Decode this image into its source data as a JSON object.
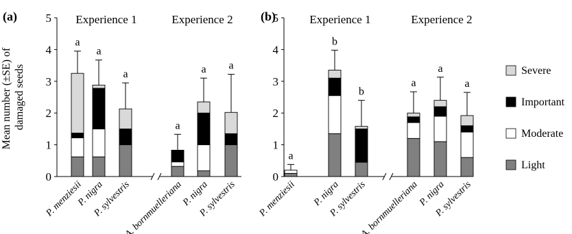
{
  "figure": {
    "ylabel_line1": "Mean number (±SE) of",
    "ylabel_line2": "damaged seeds",
    "legend": [
      {
        "label": "Severe",
        "color": "#d9d9d9"
      },
      {
        "label": "Important",
        "color": "#000000"
      },
      {
        "label": "Moderate",
        "color": "#ffffff"
      },
      {
        "label": "Light",
        "color": "#808080"
      }
    ]
  },
  "chart_data": [
    {
      "type": "bar",
      "stacked": true,
      "panel_label": "(a)",
      "ylim": [
        0,
        5
      ],
      "yticks": [
        "0",
        "1",
        "2",
        "3",
        "4",
        "5"
      ],
      "ylabel": "Mean number (±SE) of damaged seeds",
      "groups": [
        {
          "name": "Experience 1",
          "categories": [
            "P. menziesii",
            "P. nigra",
            "P. sylvestris"
          ]
        },
        {
          "name": "Experience 2",
          "categories": [
            "A. bornmuelleriana",
            "P. nigra",
            "P. sylvestris"
          ]
        }
      ],
      "series": [
        {
          "name": "Light",
          "values": [
            0.62,
            0.62,
            1.0,
            0.32,
            0.18,
            1.0
          ]
        },
        {
          "name": "Moderate",
          "values": [
            0.6,
            0.88,
            0.0,
            0.14,
            0.82,
            0.0
          ]
        },
        {
          "name": "Important",
          "values": [
            0.15,
            1.28,
            0.5,
            0.37,
            1.0,
            0.35
          ]
        },
        {
          "name": "Severe",
          "values": [
            1.88,
            0.1,
            0.63,
            0.0,
            0.35,
            0.67
          ]
        }
      ],
      "totals": [
        3.25,
        2.88,
        2.13,
        0.83,
        2.35,
        2.02
      ],
      "error_bars": [
        3.95,
        3.67,
        2.95,
        1.33,
        3.1,
        3.22
      ],
      "significance": [
        "a",
        "a",
        "a",
        "a",
        "a",
        "a"
      ]
    },
    {
      "type": "bar",
      "stacked": true,
      "panel_label": "(b)",
      "ylim": [
        0,
        5
      ],
      "yticks": [
        "0",
        "1",
        "2",
        "3",
        "4",
        "5"
      ],
      "groups": [
        {
          "name": "Experience 1",
          "categories": [
            "P. menziesii",
            "P. nigra",
            "P. sylvestris"
          ]
        },
        {
          "name": "Experience 2",
          "categories": [
            "A. bornmuelleriana",
            "P. nigra",
            "P. sylvestris"
          ]
        }
      ],
      "series": [
        {
          "name": "Light",
          "values": [
            0.1,
            1.35,
            0.45,
            1.2,
            1.1,
            0.6
          ]
        },
        {
          "name": "Moderate",
          "values": [
            0.1,
            1.2,
            0.0,
            0.5,
            0.8,
            0.8
          ]
        },
        {
          "name": "Important",
          "values": [
            0.0,
            0.55,
            1.05,
            0.18,
            0.3,
            0.2
          ]
        },
        {
          "name": "Severe",
          "values": [
            0.0,
            0.25,
            0.08,
            0.12,
            0.2,
            0.32
          ]
        }
      ],
      "totals": [
        0.2,
        3.35,
        1.58,
        2.0,
        2.4,
        1.92
      ],
      "error_bars": [
        0.38,
        3.98,
        2.4,
        2.67,
        3.13,
        2.65
      ],
      "significance": [
        "a",
        "b",
        "b",
        "a",
        "a",
        "a"
      ]
    }
  ]
}
